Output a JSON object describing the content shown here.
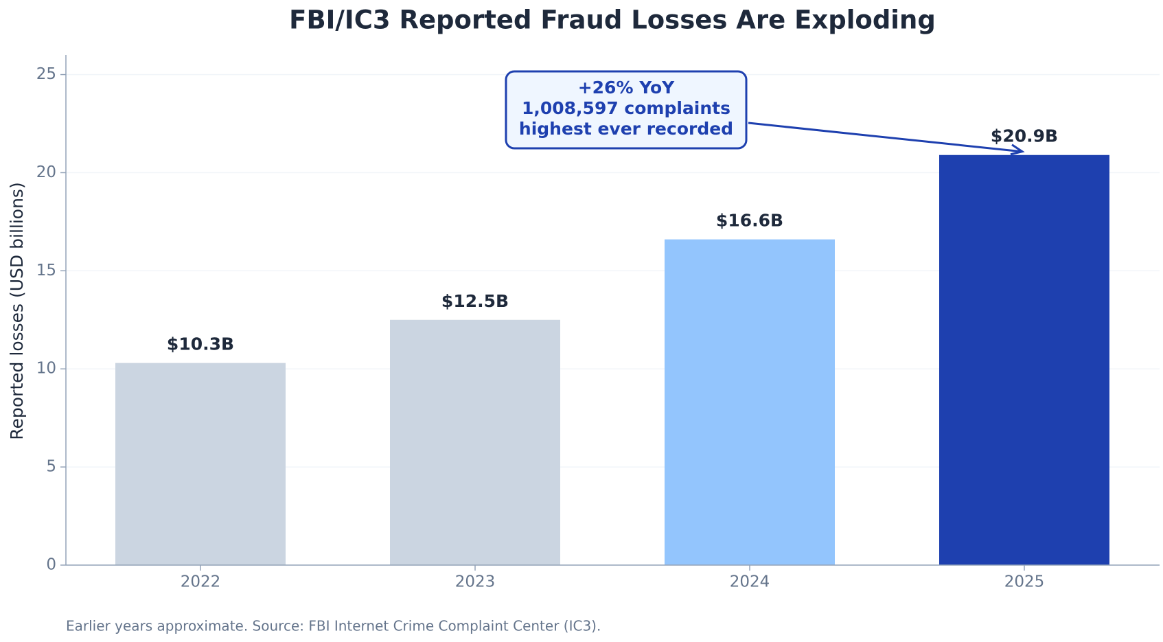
{
  "chart_data": {
    "type": "bar",
    "title": "FBI/IC3 Reported Fraud Losses Are Exploding",
    "y_label": "Reported losses (USD billions)",
    "categories": [
      "2022",
      "2023",
      "2024",
      "2025"
    ],
    "values": [
      10.3,
      12.5,
      16.6,
      20.9
    ],
    "value_labels": [
      "$10.3B",
      "$12.5B",
      "$16.6B",
      "$20.9B"
    ],
    "colors": [
      "#cbd5e1",
      "#cbd5e1",
      "#93c5fd",
      "#1e40af"
    ],
    "ylim": [
      0,
      26
    ],
    "yticks": [
      0,
      5,
      10,
      15,
      20,
      25
    ],
    "grid": true,
    "annotation": [
      "+26% YoY",
      "1,008,597 complaints",
      "highest ever recorded"
    ],
    "footnote": "Earlier years approximate. Source: FBI Internet Crime Complaint Center (IC3)."
  }
}
